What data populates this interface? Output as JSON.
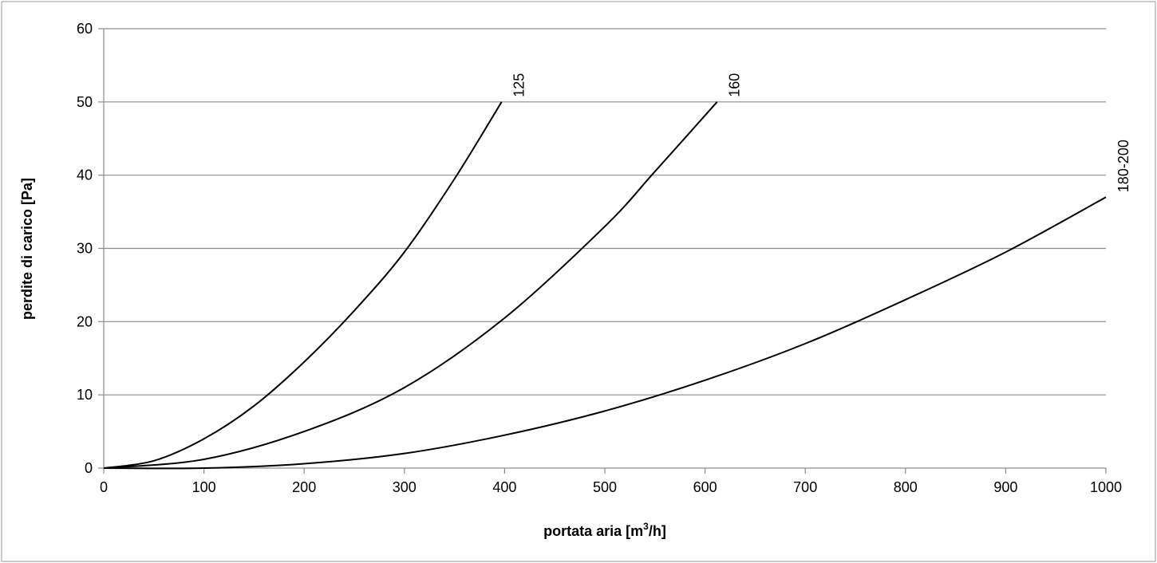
{
  "chart_data": {
    "type": "line",
    "xlabel_prefix": "portata aria [m",
    "xlabel_sup": "3",
    "xlabel_suffix": "/h]",
    "ylabel": "perdite di carico [Pa]",
    "xlim": [
      0,
      1000
    ],
    "ylim": [
      0,
      60
    ],
    "x_ticks": [
      "0",
      "100",
      "200",
      "300",
      "400",
      "500",
      "600",
      "700",
      "800",
      "900",
      "1000"
    ],
    "y_ticks": [
      "0",
      "10",
      "20",
      "30",
      "40",
      "50",
      "60"
    ],
    "grid": "horizontal",
    "legend": "none",
    "series": [
      {
        "name": "125",
        "x": [
          0,
          50,
          100,
          150,
          200,
          250,
          300,
          350,
          397
        ],
        "y": [
          0,
          1,
          4,
          8.5,
          14.5,
          21.5,
          29.5,
          39.5,
          50
        ]
      },
      {
        "name": "160",
        "x": [
          0,
          100,
          200,
          300,
          400,
          500,
          550,
          612
        ],
        "y": [
          0,
          1.2,
          5,
          11,
          20.5,
          33,
          40.5,
          50
        ]
      },
      {
        "name": "180-200",
        "x": [
          0,
          100,
          200,
          300,
          400,
          500,
          600,
          700,
          800,
          900,
          1000
        ],
        "y": [
          0,
          0,
          0.6,
          2,
          4.5,
          7.8,
          12,
          17,
          23,
          29.5,
          37
        ]
      }
    ]
  }
}
